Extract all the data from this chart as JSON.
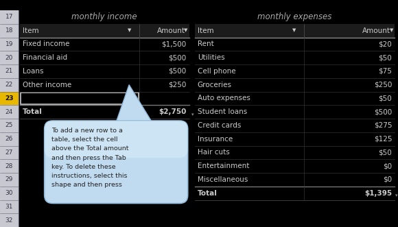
{
  "bg_color": "#000000",
  "row_nums": [
    17,
    18,
    19,
    20,
    21,
    22,
    23,
    24,
    25,
    26,
    27,
    28,
    29,
    30,
    31,
    32
  ],
  "row_num_color": "#999999",
  "income_title": "monthly income",
  "expenses_title": "monthly expenses",
  "title_color": "#aaaaaa",
  "income_rows": [
    [
      "Fixed income",
      "$1,500"
    ],
    [
      "Financial aid",
      "$500"
    ],
    [
      "Loans",
      "$500"
    ],
    [
      "Other income",
      "$250"
    ],
    [
      "",
      ""
    ],
    [
      "Total",
      "$2,750"
    ]
  ],
  "expenses_rows": [
    [
      "Rent",
      "$20"
    ],
    [
      "Utilities",
      "$50"
    ],
    [
      "Cell phone",
      "$75"
    ],
    [
      "Groceries",
      "$250"
    ],
    [
      "Auto expenses",
      "$50"
    ],
    [
      "Student loans",
      "$500"
    ],
    [
      "Credit cards",
      "$275"
    ],
    [
      "Insurance",
      "$125"
    ],
    [
      "Hair cuts",
      "$50"
    ],
    [
      "Entertainment",
      "$0"
    ],
    [
      "Miscellaneous",
      "$0"
    ],
    [
      "Total",
      "$1,395"
    ]
  ],
  "cell_text_color": "#cccccc",
  "row_num_bg": "#c8c8d0",
  "row_num_selected_bg": "#e8b800",
  "row_num_selected_color": "#000000",
  "header_bg": "#1a1a1a",
  "table_bg": "#000000",
  "separator_color": "#333333",
  "total_separator_color": "#555555",
  "bubble_bg_top": "#d0e8f8",
  "bubble_bg_bot": "#a8c8e0",
  "bubble_text": "To add a new row to a\ntable, select the cell\nabove the Total amount\nand then press the Tab\nkey. To delete these\ninstructions, select this\nshape and then press",
  "bubble_text_color": "#222222",
  "selected_cell_bg": "#111111",
  "selected_cell_border": "#aaaaaa"
}
